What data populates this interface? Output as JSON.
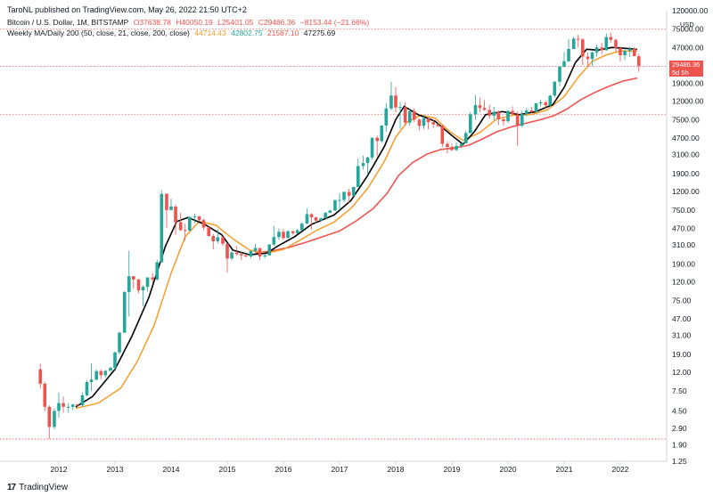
{
  "header": {
    "text": "TaroNL published on TradingView.com, May 26, 2022 21:50 UTC+2"
  },
  "legend": {
    "symbol": "Bitcoin / U.S. Dollar, 1M, BITSTAMP",
    "open": "O37638.78",
    "high": "H40050.19",
    "low": "L25401.05",
    "close": "C29486.36",
    "change": "−8153.44 (−21.66%)",
    "ma_label": "Weekly MA/Daily 200 (50, close, 21, close, 200, close)",
    "ma1": "44714.43",
    "ma2": "42802.75",
    "ma3": "21587.10",
    "ma4": "47275.69"
  },
  "price_badge": {
    "price": "29486.36",
    "countdown": "5d 5h"
  },
  "unit": "USD",
  "footer": {
    "brand": "TradingView"
  },
  "colors": {
    "up": "#26a69a",
    "down": "#ef5350",
    "ma_fast": "#000000",
    "ma_mid": "#f59d2a",
    "ma_slow": "#ef5350",
    "grid_dotted": "#ef5350"
  },
  "chart_data": {
    "type": "candlestick",
    "scale": "log",
    "y_ticks": [
      "120000.00",
      "75000.00",
      "47000.00",
      "29000.00",
      "19000.00",
      "12000.00",
      "7500.00",
      "4700.00",
      "3100.00",
      "1900.00",
      "1200.00",
      "750.00",
      "470.00",
      "310.00",
      "190.00",
      "120.00",
      "75.00",
      "47.00",
      "31.00",
      "19.00",
      "12.00",
      "7.50",
      "4.50",
      "2.90",
      "1.90",
      "1.25"
    ],
    "x_ticks": [
      "2012",
      "2013",
      "2014",
      "2015",
      "2016",
      "2017",
      "2018",
      "2019",
      "2020",
      "2021",
      "2022"
    ],
    "ylim": [
      1.25,
      120000
    ],
    "x_range": [
      2011.55,
      2022.7
    ],
    "horizontal_lines": [
      75000,
      29000,
      8500,
      2.2
    ],
    "candles": [
      [
        2011.67,
        13,
        9,
        15,
        8
      ],
      [
        2011.75,
        9,
        5,
        9.5,
        4.5
      ],
      [
        2011.83,
        5,
        3,
        5.2,
        2.2
      ],
      [
        2011.92,
        3,
        4.5,
        4.8,
        2.8
      ],
      [
        2012.0,
        4.5,
        5.5,
        7.2,
        3.8
      ],
      [
        2012.08,
        5.5,
        5,
        6.5,
        4.3
      ],
      [
        2012.17,
        5,
        5,
        5.5,
        4.3
      ],
      [
        2012.25,
        5,
        5.3,
        5.4,
        4.6
      ],
      [
        2012.33,
        5.3,
        5.2,
        5.4,
        4.9
      ],
      [
        2012.42,
        5.2,
        6.7,
        7.2,
        5.0
      ],
      [
        2012.5,
        6.7,
        9.4,
        9.8,
        6.5
      ],
      [
        2012.58,
        9.4,
        10,
        15,
        7.5
      ],
      [
        2012.67,
        10,
        12.4,
        13,
        9.8
      ],
      [
        2012.75,
        12.4,
        11.2,
        13,
        10
      ],
      [
        2012.83,
        11.2,
        12.5,
        12.8,
        10.5
      ],
      [
        2012.92,
        12.5,
        13.5,
        13.8,
        12.5
      ],
      [
        2013.0,
        13.5,
        20,
        20.5,
        13
      ],
      [
        2013.08,
        20,
        33,
        34,
        19
      ],
      [
        2013.17,
        33,
        93,
        95,
        33
      ],
      [
        2013.25,
        93,
        139,
        266,
        50
      ],
      [
        2013.33,
        139,
        128,
        140,
        100
      ],
      [
        2013.42,
        128,
        97,
        130,
        90
      ],
      [
        2013.5,
        97,
        106,
        110,
        65
      ],
      [
        2013.58,
        106,
        135,
        135,
        94
      ],
      [
        2013.67,
        135,
        128,
        150,
        117
      ],
      [
        2013.75,
        128,
        198,
        212,
        125
      ],
      [
        2013.83,
        198,
        1130,
        1240,
        195
      ],
      [
        2013.92,
        1130,
        750,
        1150,
        480
      ],
      [
        2014.0,
        750,
        820,
        1000,
        750
      ],
      [
        2014.08,
        820,
        550,
        860,
        400
      ],
      [
        2014.17,
        550,
        450,
        700,
        440
      ],
      [
        2014.25,
        450,
        445,
        530,
        345
      ],
      [
        2014.33,
        445,
        630,
        640,
        435
      ],
      [
        2014.42,
        630,
        640,
        680,
        540
      ],
      [
        2014.5,
        640,
        580,
        640,
        560
      ],
      [
        2014.58,
        580,
        480,
        600,
        450
      ],
      [
        2014.67,
        480,
        387,
        500,
        380
      ],
      [
        2014.75,
        387,
        338,
        410,
        275
      ],
      [
        2014.83,
        338,
        375,
        460,
        320
      ],
      [
        2014.92,
        375,
        318,
        383,
        300
      ],
      [
        2015.0,
        318,
        218,
        320,
        152
      ],
      [
        2015.08,
        218,
        254,
        265,
        210
      ],
      [
        2015.17,
        254,
        244,
        300,
        235
      ],
      [
        2015.25,
        244,
        236,
        262,
        210
      ],
      [
        2015.33,
        236,
        230,
        247,
        225
      ],
      [
        2015.42,
        230,
        264,
        268,
        220
      ],
      [
        2015.5,
        264,
        285,
        318,
        255
      ],
      [
        2015.58,
        285,
        230,
        285,
        210
      ],
      [
        2015.67,
        230,
        236,
        245,
        220
      ],
      [
        2015.75,
        236,
        311,
        316,
        236
      ],
      [
        2015.83,
        311,
        377,
        502,
        300
      ],
      [
        2015.92,
        377,
        430,
        470,
        350
      ],
      [
        2016.0,
        430,
        368,
        465,
        350
      ],
      [
        2016.08,
        368,
        437,
        448,
        365
      ],
      [
        2016.17,
        437,
        416,
        440,
        400
      ],
      [
        2016.25,
        416,
        448,
        465,
        410
      ],
      [
        2016.33,
        448,
        530,
        550,
        440
      ],
      [
        2016.42,
        530,
        675,
        780,
        525
      ],
      [
        2016.5,
        675,
        623,
        690,
        455
      ],
      [
        2016.58,
        623,
        573,
        630,
        535
      ],
      [
        2016.67,
        573,
        608,
        615,
        570
      ],
      [
        2016.75,
        608,
        700,
        710,
        606
      ],
      [
        2016.83,
        700,
        740,
        755,
        690
      ],
      [
        2016.92,
        740,
        964,
        980,
        735
      ],
      [
        2017.0,
        964,
        970,
        1150,
        750
      ],
      [
        2017.08,
        970,
        1190,
        1200,
        920
      ],
      [
        2017.17,
        1190,
        1080,
        1290,
        890
      ],
      [
        2017.25,
        1080,
        1350,
        1350,
        1060
      ],
      [
        2017.33,
        1350,
        2300,
        2800,
        1350
      ],
      [
        2017.42,
        2300,
        2480,
        3000,
        2100
      ],
      [
        2017.5,
        2480,
        2860,
        2930,
        1830
      ],
      [
        2017.58,
        2860,
        4720,
        4760,
        2700
      ],
      [
        2017.67,
        4720,
        4340,
        4980,
        2970
      ],
      [
        2017.75,
        4340,
        6450,
        6470,
        4150
      ],
      [
        2017.83,
        6450,
        9950,
        11400,
        5500
      ],
      [
        2017.92,
        9950,
        13850,
        19700,
        9500
      ],
      [
        2018.0,
        13850,
        10200,
        17150,
        9000
      ],
      [
        2018.08,
        10200,
        10330,
        11780,
        5900
      ],
      [
        2018.17,
        10330,
        6930,
        11700,
        6450
      ],
      [
        2018.25,
        6930,
        9240,
        9760,
        6430
      ],
      [
        2018.33,
        9240,
        7490,
        9990,
        7040
      ],
      [
        2018.42,
        7490,
        6390,
        7770,
        5750
      ],
      [
        2018.5,
        6390,
        7730,
        8500,
        5860
      ],
      [
        2018.58,
        7730,
        7030,
        7760,
        5880
      ],
      [
        2018.67,
        7030,
        6630,
        7410,
        6100
      ],
      [
        2018.75,
        6630,
        6370,
        6790,
        6200
      ],
      [
        2018.83,
        6370,
        4040,
        6600,
        3700
      ],
      [
        2018.92,
        4040,
        3740,
        4300,
        3160
      ],
      [
        2019.0,
        3740,
        3460,
        4070,
        3350
      ],
      [
        2019.08,
        3460,
        3830,
        4210,
        3380
      ],
      [
        2019.17,
        3830,
        4100,
        4110,
        3670
      ],
      [
        2019.25,
        4100,
        5320,
        5620,
        4080
      ],
      [
        2019.33,
        5320,
        8570,
        9070,
        5300
      ],
      [
        2019.42,
        8570,
        10820,
        13880,
        7450
      ],
      [
        2019.5,
        10820,
        10080,
        13150,
        9070
      ],
      [
        2019.58,
        10080,
        9600,
        12330,
        9360
      ],
      [
        2019.67,
        9600,
        8290,
        10900,
        7710
      ],
      [
        2019.75,
        8290,
        9150,
        10370,
        7300
      ],
      [
        2019.83,
        9150,
        7560,
        9500,
        6520
      ],
      [
        2019.92,
        7560,
        7190,
        7860,
        6430
      ],
      [
        2020.0,
        7190,
        9350,
        9600,
        6900
      ],
      [
        2020.08,
        9350,
        8540,
        10500,
        8420
      ],
      [
        2020.17,
        8540,
        6410,
        9200,
        3850
      ],
      [
        2020.25,
        6410,
        8630,
        9460,
        6150
      ],
      [
        2020.33,
        8630,
        9450,
        10070,
        8120
      ],
      [
        2020.42,
        9450,
        9140,
        10400,
        8900
      ],
      [
        2020.5,
        9140,
        11320,
        11450,
        8930
      ],
      [
        2020.58,
        11320,
        11640,
        12470,
        10540
      ],
      [
        2020.67,
        11640,
        10780,
        12050,
        9880
      ],
      [
        2020.75,
        10780,
        13800,
        14100,
        10380
      ],
      [
        2020.83,
        13800,
        19700,
        19900,
        13200
      ],
      [
        2020.92,
        19700,
        28990,
        29300,
        17600
      ],
      [
        2021.0,
        28990,
        33100,
        41970,
        28130
      ],
      [
        2021.08,
        33100,
        45240,
        58350,
        32300
      ],
      [
        2021.17,
        45240,
        58800,
        61780,
        45000
      ],
      [
        2021.25,
        58800,
        57700,
        64850,
        47000
      ],
      [
        2021.33,
        57700,
        37300,
        59500,
        30000
      ],
      [
        2021.42,
        37300,
        35040,
        41300,
        28800
      ],
      [
        2021.5,
        35040,
        41460,
        42300,
        29300
      ],
      [
        2021.58,
        41460,
        47100,
        50500,
        37300
      ],
      [
        2021.67,
        47100,
        43800,
        52920,
        39600
      ],
      [
        2021.75,
        43800,
        61300,
        66900,
        43300
      ],
      [
        2021.83,
        61300,
        57000,
        69000,
        53260
      ],
      [
        2021.92,
        57000,
        46300,
        59100,
        42000
      ],
      [
        2022.0,
        46300,
        38500,
        47900,
        32900
      ],
      [
        2022.08,
        38500,
        43160,
        45800,
        34300
      ],
      [
        2022.17,
        43160,
        45530,
        48190,
        37130
      ],
      [
        2022.25,
        45530,
        37640,
        47400,
        37600
      ],
      [
        2022.33,
        37640,
        29486,
        40050,
        25400
      ]
    ],
    "ma_fast": [
      [
        2012.3,
        5
      ],
      [
        2012.6,
        6.5
      ],
      [
        2013.0,
        13
      ],
      [
        2013.3,
        30
      ],
      [
        2013.6,
        80
      ],
      [
        2013.9,
        300
      ],
      [
        2014.1,
        560
      ],
      [
        2014.3,
        620
      ],
      [
        2014.6,
        520
      ],
      [
        2014.9,
        400
      ],
      [
        2015.1,
        270
      ],
      [
        2015.4,
        240
      ],
      [
        2015.7,
        250
      ],
      [
        2015.9,
        300
      ],
      [
        2016.2,
        380
      ],
      [
        2016.5,
        520
      ],
      [
        2016.9,
        660
      ],
      [
        2017.2,
        950
      ],
      [
        2017.5,
        1800
      ],
      [
        2017.8,
        3800
      ],
      [
        2018.0,
        7500
      ],
      [
        2018.15,
        10500
      ],
      [
        2018.4,
        8500
      ],
      [
        2018.7,
        7200
      ],
      [
        2019.0,
        5000
      ],
      [
        2019.2,
        4000
      ],
      [
        2019.4,
        5500
      ],
      [
        2019.6,
        8500
      ],
      [
        2019.9,
        9200
      ],
      [
        2020.2,
        8500
      ],
      [
        2020.5,
        9200
      ],
      [
        2020.8,
        11000
      ],
      [
        2021.0,
        17000
      ],
      [
        2021.2,
        32000
      ],
      [
        2021.4,
        45000
      ],
      [
        2021.6,
        44000
      ],
      [
        2021.85,
        47000
      ],
      [
        2022.1,
        46000
      ],
      [
        2022.3,
        44714
      ]
    ],
    "ma_mid": [
      [
        2012.3,
        4.8
      ],
      [
        2012.7,
        5.5
      ],
      [
        2013.1,
        8
      ],
      [
        2013.4,
        16
      ],
      [
        2013.7,
        40
      ],
      [
        2014.0,
        150
      ],
      [
        2014.25,
        380
      ],
      [
        2014.5,
        560
      ],
      [
        2014.8,
        510
      ],
      [
        2015.1,
        360
      ],
      [
        2015.4,
        270
      ],
      [
        2015.7,
        250
      ],
      [
        2016.0,
        275
      ],
      [
        2016.3,
        350
      ],
      [
        2016.6,
        450
      ],
      [
        2016.9,
        550
      ],
      [
        2017.2,
        780
      ],
      [
        2017.5,
        1300
      ],
      [
        2017.8,
        2600
      ],
      [
        2018.0,
        4800
      ],
      [
        2018.2,
        7000
      ],
      [
        2018.45,
        8400
      ],
      [
        2018.7,
        7800
      ],
      [
        2018.95,
        5600
      ],
      [
        2019.2,
        4400
      ],
      [
        2019.5,
        5400
      ],
      [
        2019.8,
        7600
      ],
      [
        2020.1,
        8400
      ],
      [
        2020.4,
        8500
      ],
      [
        2020.7,
        9600
      ],
      [
        2021.0,
        13500
      ],
      [
        2021.25,
        22000
      ],
      [
        2021.5,
        33000
      ],
      [
        2021.75,
        39000
      ],
      [
        2022.0,
        43000
      ],
      [
        2022.3,
        42802
      ]
    ],
    "ma_slow": [
      [
        2015.5,
        250
      ],
      [
        2015.8,
        265
      ],
      [
        2016.1,
        290
      ],
      [
        2016.4,
        330
      ],
      [
        2016.7,
        380
      ],
      [
        2017.0,
        440
      ],
      [
        2017.3,
        570
      ],
      [
        2017.6,
        780
      ],
      [
        2017.85,
        1150
      ],
      [
        2018.05,
        1800
      ],
      [
        2018.3,
        2500
      ],
      [
        2018.55,
        3100
      ],
      [
        2018.8,
        3500
      ],
      [
        2019.05,
        3650
      ],
      [
        2019.3,
        3900
      ],
      [
        2019.55,
        4600
      ],
      [
        2019.8,
        5500
      ],
      [
        2020.05,
        6200
      ],
      [
        2020.3,
        6800
      ],
      [
        2020.55,
        7400
      ],
      [
        2020.8,
        8200
      ],
      [
        2021.05,
        9800
      ],
      [
        2021.3,
        12500
      ],
      [
        2021.55,
        15000
      ],
      [
        2021.8,
        17500
      ],
      [
        2022.05,
        20000
      ],
      [
        2022.3,
        21587
      ]
    ]
  }
}
